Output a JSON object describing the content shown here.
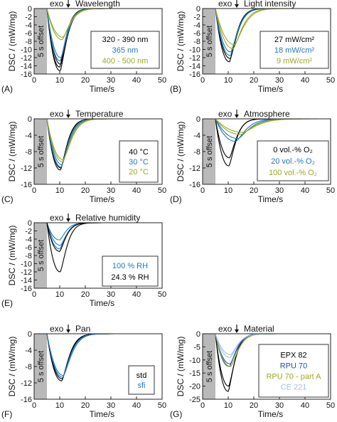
{
  "figure": {
    "xlabel": "Time/s",
    "ylabel": "DSC / (mW/mg)",
    "offset_label": "5 s offset",
    "exo_label": "exo"
  },
  "chart_data": [
    {
      "type": "line",
      "panel": "(A)",
      "title": "Wavelength",
      "xlim": [
        0,
        50
      ],
      "ylim": [
        -16,
        0
      ],
      "xticks": [
        0,
        10,
        20,
        30,
        40,
        50
      ],
      "yticks": [
        0,
        -2,
        -4,
        -6,
        -8,
        -10,
        -12,
        -14,
        -16
      ],
      "offset_region": [
        0,
        5
      ],
      "legend_position": "right",
      "series": [
        {
          "name": "320 - 390 nm",
          "color": "#000000",
          "curves": [
            {
              "peak_x": 10.2,
              "peak_y": -15.2
            },
            {
              "peak_x": 10.0,
              "peak_y": -14.3
            },
            {
              "peak_x": 10.4,
              "peak_y": -13.6
            }
          ]
        },
        {
          "name": "365 nm",
          "color": "#1f78c8",
          "curves": [
            {
              "peak_x": 10.2,
              "peak_y": -12.8
            },
            {
              "peak_x": 10.5,
              "peak_y": -12.0
            }
          ]
        },
        {
          "name": "400 - 500 nm",
          "color": "#9aaa1e",
          "curves": [
            {
              "peak_x": 11.0,
              "peak_y": -7.6
            },
            {
              "peak_x": 11.3,
              "peak_y": -7.0
            }
          ]
        }
      ]
    },
    {
      "type": "line",
      "panel": "(B)",
      "title": "Light intensity",
      "xlim": [
        0,
        50
      ],
      "ylim": [
        -16,
        0
      ],
      "xticks": [
        0,
        10,
        20,
        30,
        40,
        50
      ],
      "yticks": [
        0,
        -2,
        -4,
        -6,
        -8,
        -10,
        -12,
        -14,
        -16
      ],
      "offset_region": [
        0,
        5
      ],
      "legend_position": "right",
      "series": [
        {
          "name": "27 mW/cm²",
          "color": "#000000",
          "curves": [
            {
              "peak_x": 10.5,
              "peak_y": -13.0
            },
            {
              "peak_x": 10.8,
              "peak_y": -12.2
            }
          ]
        },
        {
          "name": "18 mW/cm²",
          "color": "#1f78c8",
          "curves": [
            {
              "peak_x": 10.8,
              "peak_y": -11.5
            },
            {
              "peak_x": 11.0,
              "peak_y": -10.6
            }
          ]
        },
        {
          "name": "9 mW/cm²",
          "color": "#9aaa1e",
          "curves": [
            {
              "peak_x": 12.0,
              "peak_y": -9.8
            },
            {
              "peak_x": 12.5,
              "peak_y": -8.8
            }
          ]
        }
      ]
    },
    {
      "type": "line",
      "panel": "(C)",
      "title": "Temperature",
      "xlim": [
        0,
        50
      ],
      "ylim": [
        -16,
        0
      ],
      "xticks": [
        0,
        10,
        20,
        30,
        40,
        50
      ],
      "yticks": [
        0,
        -4,
        -8,
        -12,
        -16
      ],
      "offset_region": [
        0,
        5
      ],
      "legend_position": "right",
      "series": [
        {
          "name": "40 °C",
          "color": "#000000",
          "curves": [
            {
              "peak_x": 10.3,
              "peak_y": -12.5
            },
            {
              "peak_x": 10.5,
              "peak_y": -12.0
            }
          ]
        },
        {
          "name": "30 °C",
          "color": "#1f78c8",
          "curves": [
            {
              "peak_x": 10.6,
              "peak_y": -11.8
            },
            {
              "peak_x": 10.9,
              "peak_y": -11.2
            }
          ]
        },
        {
          "name": "20 °C",
          "color": "#9aaa1e",
          "curves": [
            {
              "peak_x": 11.2,
              "peak_y": -10.5
            },
            {
              "peak_x": 11.5,
              "peak_y": -10.0
            }
          ]
        }
      ]
    },
    {
      "type": "line",
      "panel": "(D)",
      "title": "Atmosphere",
      "xlim": [
        0,
        50
      ],
      "ylim": [
        -16,
        0
      ],
      "xticks": [
        0,
        10,
        20,
        30,
        40,
        50
      ],
      "yticks": [
        0,
        -4,
        -8,
        -12,
        -16
      ],
      "offset_region": [
        0,
        5
      ],
      "legend_position": "right",
      "series": [
        {
          "name": "0 vol.-% O₂",
          "color": "#000000",
          "curves": [
            {
              "peak_x": 10.3,
              "peak_y": -11.5
            },
            {
              "peak_x": 10.5,
              "peak_y": -9.5
            }
          ]
        },
        {
          "name": "20 vol.-% O₂",
          "color": "#1f78c8",
          "curves": [
            {
              "peak_x": 13.0,
              "peak_y": -5.5
            },
            {
              "peak_x": 14.0,
              "peak_y": -4.8
            }
          ]
        },
        {
          "name": "100 vol.-% O₂",
          "color": "#9aaa1e",
          "curves": [
            {
              "peak_x": 15.0,
              "peak_y": -3.8
            },
            {
              "peak_x": 16.0,
              "peak_y": -3.3
            }
          ]
        }
      ]
    },
    {
      "type": "line",
      "panel": "(E)",
      "title": "Relative humidity",
      "xlim": [
        0,
        50
      ],
      "ylim": [
        -16,
        0
      ],
      "xticks": [
        0,
        10,
        20,
        30,
        40,
        50
      ],
      "yticks": [
        0,
        -2,
        -4,
        -6,
        -8,
        -10,
        -12,
        -14,
        -16
      ],
      "offset_region": [
        0,
        5
      ],
      "legend_position": "right",
      "series": [
        {
          "name": "100 % RH",
          "color": "#1f78c8",
          "curves": [
            {
              "peak_x": 10.0,
              "peak_y": -6.4
            },
            {
              "peak_x": 10.3,
              "peak_y": -5.5
            },
            {
              "peak_x": 10.0,
              "peak_y": -4.2
            }
          ]
        },
        {
          "name": "24.3 % RH",
          "color": "#000000",
          "curves": [
            {
              "peak_x": 10.2,
              "peak_y": -12.0
            },
            {
              "peak_x": 10.0,
              "peak_y": -7.0
            }
          ]
        }
      ]
    },
    {
      "type": "line",
      "panel": "(F)",
      "title": "Pan",
      "xlim": [
        0,
        50
      ],
      "ylim": [
        -16,
        0
      ],
      "xticks": [
        0,
        10,
        20,
        30,
        40,
        50
      ],
      "yticks": [
        0,
        -4,
        -8,
        -12,
        -16
      ],
      "offset_region": [
        0,
        5
      ],
      "legend_position": "right",
      "series": [
        {
          "name": "std",
          "color": "#000000",
          "curves": [
            {
              "peak_x": 10.8,
              "peak_y": -11.5
            },
            {
              "peak_x": 11.0,
              "peak_y": -11.0
            }
          ]
        },
        {
          "name": "sfi",
          "color": "#1f78c8",
          "curves": [
            {
              "peak_x": 11.2,
              "peak_y": -10.6
            },
            {
              "peak_x": 11.5,
              "peak_y": -10.2
            }
          ]
        }
      ]
    },
    {
      "type": "line",
      "panel": "(G)",
      "title": "Material",
      "xlim": [
        0,
        50
      ],
      "ylim": [
        -25,
        0
      ],
      "xticks": [
        0,
        10,
        20,
        30,
        40,
        50
      ],
      "yticks": [
        0,
        -5,
        -10,
        -15,
        -20,
        -25
      ],
      "offset_region": [
        0,
        5
      ],
      "legend_position": "right",
      "series": [
        {
          "name": "EPX 82",
          "color": "#000000",
          "curves": [
            {
              "peak_x": 10.0,
              "peak_y": -22.0
            },
            {
              "peak_x": 10.2,
              "peak_y": -20.0
            }
          ]
        },
        {
          "name": "RPU 70",
          "color": "#1f50b4",
          "curves": [
            {
              "peak_x": 10.5,
              "peak_y": -12.5
            },
            {
              "peak_x": 10.8,
              "peak_y": -11.5
            }
          ]
        },
        {
          "name": "RPU 70 - part A",
          "color": "#9aaa1e",
          "curves": [
            {
              "peak_x": 11.0,
              "peak_y": -12.5
            }
          ]
        },
        {
          "name": "CE 221",
          "color": "#9fc3e6",
          "curves": [
            {
              "peak_x": 10.8,
              "peak_y": -9.0
            },
            {
              "peak_x": 11.0,
              "peak_y": -8.0
            }
          ]
        }
      ]
    }
  ]
}
